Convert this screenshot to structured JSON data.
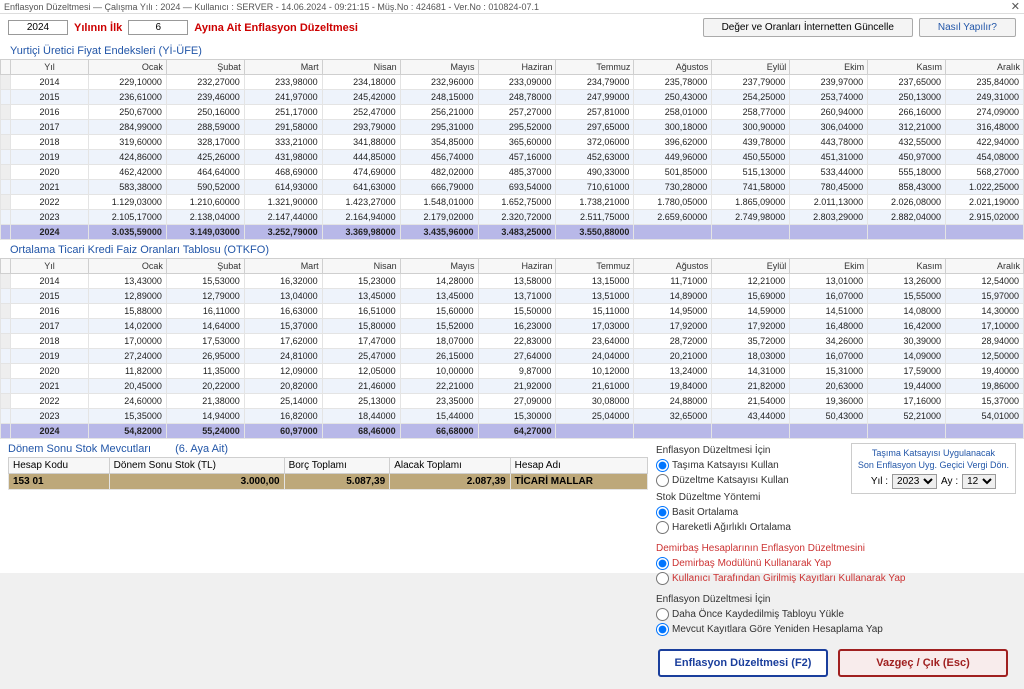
{
  "titlebar": "Enflasyon Düzeltmesi  —  Çalışma Yılı : 2024  —  Kullanıcı : SERVER - 14.06.2024 - 09:21:15 - Müş.No : 424681 - Ver.No : 010824-07.1",
  "top": {
    "year": "2024",
    "year_label": "Yılının İlk",
    "month": "6",
    "month_label": "Ayına Ait Enflasyon Düzeltmesi",
    "btn_update": "Değer ve Oranları İnternetten Güncelle",
    "btn_help": "Nasıl Yapılır?"
  },
  "yi_ufe": {
    "title": "Yurtiçi Üretici Fiyat Endeksleri (Yİ-ÜFE)",
    "cols": [
      "Yıl",
      "Ocak",
      "Şubat",
      "Mart",
      "Nisan",
      "Mayıs",
      "Haziran",
      "Temmuz",
      "Ağustos",
      "Eylül",
      "Ekim",
      "Kasım",
      "Aralık"
    ],
    "rows": [
      [
        "2014",
        "229,10000",
        "232,27000",
        "233,98000",
        "234,18000",
        "232,96000",
        "233,09000",
        "234,79000",
        "235,78000",
        "237,79000",
        "239,97000",
        "237,65000",
        "235,84000"
      ],
      [
        "2015",
        "236,61000",
        "239,46000",
        "241,97000",
        "245,42000",
        "248,15000",
        "248,78000",
        "247,99000",
        "250,43000",
        "254,25000",
        "253,74000",
        "250,13000",
        "249,31000"
      ],
      [
        "2016",
        "250,67000",
        "250,16000",
        "251,17000",
        "252,47000",
        "256,21000",
        "257,27000",
        "257,81000",
        "258,01000",
        "258,77000",
        "260,94000",
        "266,16000",
        "274,09000"
      ],
      [
        "2017",
        "284,99000",
        "288,59000",
        "291,58000",
        "293,79000",
        "295,31000",
        "295,52000",
        "297,65000",
        "300,18000",
        "300,90000",
        "306,04000",
        "312,21000",
        "316,48000"
      ],
      [
        "2018",
        "319,60000",
        "328,17000",
        "333,21000",
        "341,88000",
        "354,85000",
        "365,60000",
        "372,06000",
        "396,62000",
        "439,78000",
        "443,78000",
        "432,55000",
        "422,94000"
      ],
      [
        "2019",
        "424,86000",
        "425,26000",
        "431,98000",
        "444,85000",
        "456,74000",
        "457,16000",
        "452,63000",
        "449,96000",
        "450,55000",
        "451,31000",
        "450,97000",
        "454,08000"
      ],
      [
        "2020",
        "462,42000",
        "464,64000",
        "468,69000",
        "474,69000",
        "482,02000",
        "485,37000",
        "490,33000",
        "501,85000",
        "515,13000",
        "533,44000",
        "555,18000",
        "568,27000"
      ],
      [
        "2021",
        "583,38000",
        "590,52000",
        "614,93000",
        "641,63000",
        "666,79000",
        "693,54000",
        "710,61000",
        "730,28000",
        "741,58000",
        "780,45000",
        "858,43000",
        "1.022,25000"
      ],
      [
        "2022",
        "1.129,03000",
        "1.210,60000",
        "1.321,90000",
        "1.423,27000",
        "1.548,01000",
        "1.652,75000",
        "1.738,21000",
        "1.780,05000",
        "1.865,09000",
        "2.011,13000",
        "2.026,08000",
        "2.021,19000"
      ],
      [
        "2023",
        "2.105,17000",
        "2.138,04000",
        "2.147,44000",
        "2.164,94000",
        "2.179,02000",
        "2.320,72000",
        "2.511,75000",
        "2.659,60000",
        "2.749,98000",
        "2.803,29000",
        "2.882,04000",
        "2.915,02000"
      ],
      [
        "2024",
        "3.035,59000",
        "3.149,03000",
        "3.252,79000",
        "3.369,98000",
        "3.435,96000",
        "3.483,25000",
        "3.550,88000",
        "",
        "",
        "",
        "",
        ""
      ]
    ]
  },
  "otkfo": {
    "title": "Ortalama Ticari Kredi Faiz Oranları Tablosu (OTKFO)",
    "cols": [
      "Yıl",
      "Ocak",
      "Şubat",
      "Mart",
      "Nisan",
      "Mayıs",
      "Haziran",
      "Temmuz",
      "Ağustos",
      "Eylül",
      "Ekim",
      "Kasım",
      "Aralık"
    ],
    "rows": [
      [
        "2014",
        "13,43000",
        "15,53000",
        "16,32000",
        "15,23000",
        "14,28000",
        "13,58000",
        "13,15000",
        "11,71000",
        "12,21000",
        "13,01000",
        "13,26000",
        "12,54000"
      ],
      [
        "2015",
        "12,89000",
        "12,79000",
        "13,04000",
        "13,45000",
        "13,45000",
        "13,71000",
        "13,51000",
        "14,89000",
        "15,69000",
        "16,07000",
        "15,55000",
        "15,97000"
      ],
      [
        "2016",
        "15,88000",
        "16,11000",
        "16,63000",
        "16,51000",
        "15,60000",
        "15,50000",
        "15,11000",
        "14,95000",
        "14,59000",
        "14,51000",
        "14,08000",
        "14,30000"
      ],
      [
        "2017",
        "14,02000",
        "14,64000",
        "15,37000",
        "15,80000",
        "15,52000",
        "16,23000",
        "17,03000",
        "17,92000",
        "17,92000",
        "16,48000",
        "16,42000",
        "17,10000"
      ],
      [
        "2018",
        "17,00000",
        "17,53000",
        "17,62000",
        "17,47000",
        "18,07000",
        "22,83000",
        "23,64000",
        "28,72000",
        "35,72000",
        "34,26000",
        "30,39000",
        "28,94000"
      ],
      [
        "2019",
        "27,24000",
        "26,95000",
        "24,81000",
        "25,47000",
        "26,15000",
        "27,64000",
        "24,04000",
        "20,21000",
        "18,03000",
        "16,07000",
        "14,09000",
        "12,50000"
      ],
      [
        "2020",
        "11,82000",
        "11,35000",
        "12,09000",
        "12,05000",
        "10,00000",
        "9,87000",
        "10,12000",
        "13,24000",
        "14,31000",
        "15,31000",
        "17,59000",
        "19,40000"
      ],
      [
        "2021",
        "20,45000",
        "20,22000",
        "20,82000",
        "21,46000",
        "22,21000",
        "21,92000",
        "21,61000",
        "19,84000",
        "21,82000",
        "20,63000",
        "19,44000",
        "19,86000"
      ],
      [
        "2022",
        "24,60000",
        "21,38000",
        "25,14000",
        "25,13000",
        "23,35000",
        "27,09000",
        "30,08000",
        "24,88000",
        "21,54000",
        "19,36000",
        "17,16000",
        "15,37000"
      ],
      [
        "2023",
        "15,35000",
        "14,94000",
        "16,82000",
        "18,44000",
        "15,44000",
        "15,30000",
        "25,04000",
        "32,65000",
        "43,44000",
        "50,43000",
        "52,21000",
        "54,01000"
      ],
      [
        "2024",
        "54,82000",
        "55,24000",
        "60,97000",
        "68,46000",
        "66,68000",
        "64,27000",
        "",
        "",
        "",
        "",
        "",
        ""
      ]
    ]
  },
  "stock": {
    "title": "Dönem Sonu Stok Mevcutları",
    "sub": "(6. Aya Ait)",
    "cols": [
      "Hesap Kodu",
      "Dönem Sonu Stok (TL)",
      "Borç Toplamı",
      "Alacak Toplamı",
      "Hesap Adı"
    ],
    "row": [
      "153 01",
      "3.000,00",
      "5.087,39",
      "2.087,39",
      "TİCARİ MALLAR"
    ]
  },
  "opts": {
    "g1_title": "Enflasyon Düzeltmesi İçin",
    "g1_a": "Taşıma Katsayısı Kullan",
    "g1_b": "Düzeltme Katsayısı Kullan",
    "g2_title": "Stok Düzeltme Yöntemi",
    "g2_a": "Basit Ortalama",
    "g2_b": "Hareketli Ağırlıklı Ortalama",
    "g3_title": "Demirbaş Hesaplarının Enflasyon Düzeltmesini",
    "g3_a": "Demirbaş Modülünü Kullanarak Yap",
    "g3_b": "Kullanıcı Tarafından Girilmiş Kayıtları Kullanarak Yap",
    "g4_title": "Enflasyon Düzeltmesi İçin",
    "g4_a": "Daha Önce Kaydedilmiş Tabloyu Yükle",
    "g4_b": "Mevcut Kayıtlara Göre Yeniden Hesaplama Yap",
    "yb_l1": "Taşıma Katsayısı Uygulanacak",
    "yb_l2": "Son Enflasyon Uyg. Geçici Vergi Dön.",
    "yb_year_lbl": "Yıl :",
    "yb_year": "2023",
    "yb_month_lbl": "Ay :",
    "yb_month": "12"
  },
  "btns": {
    "ok": "Enflasyon Düzeltmesi (F2)",
    "cancel": "Vazgeç / Çık (Esc)"
  }
}
